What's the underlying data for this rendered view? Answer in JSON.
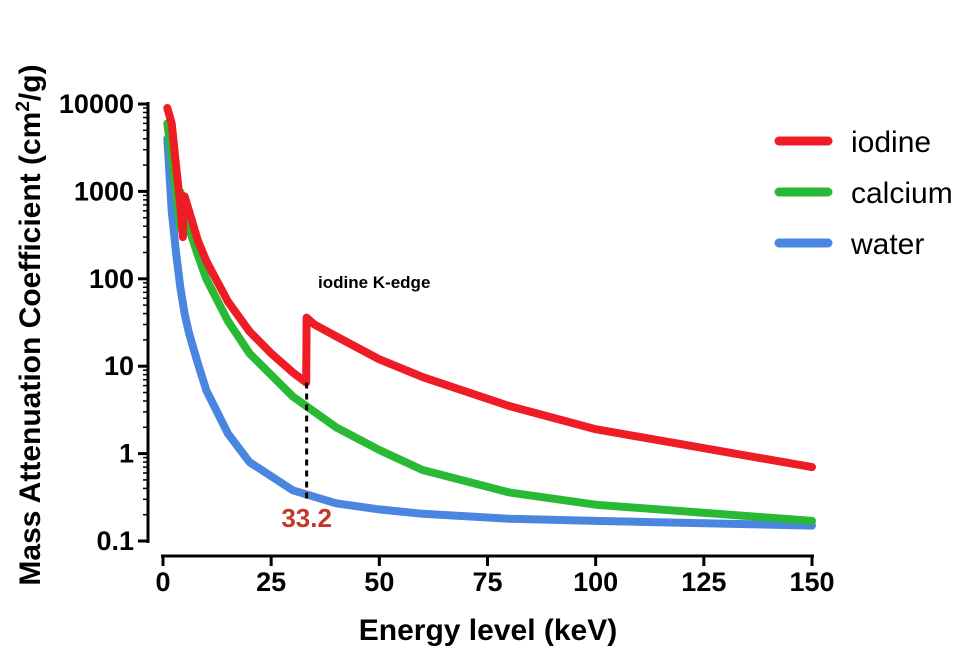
{
  "chart_data": {
    "type": "line",
    "xlabel": "Energy level (keV)",
    "ylabel_main": "Mass Attenuation  Coefficient (cm",
    "ylabel_sup": "2",
    "ylabel_tail": "/g)",
    "xlim": [
      0,
      150
    ],
    "ylim": [
      0.1,
      10000
    ],
    "yscale": "log",
    "x_ticks": [
      0,
      25,
      50,
      75,
      100,
      125,
      150
    ],
    "x_tick_labels": [
      "0",
      "25",
      "50",
      "75",
      "100",
      "125",
      "150"
    ],
    "y_ticks": [
      0.1,
      1,
      10,
      100,
      1000,
      10000
    ],
    "y_tick_labels": [
      "0.1",
      "1",
      "10",
      "100",
      "1000",
      "10000"
    ],
    "grid": false,
    "legend_position": "top-right",
    "series": [
      {
        "name": "iodine",
        "color": "#ee1c25",
        "points": [
          [
            1,
            9000
          ],
          [
            2,
            6000
          ],
          [
            3,
            2000
          ],
          [
            4,
            700
          ],
          [
            4.6,
            300
          ],
          [
            4.6,
            850
          ],
          [
            5,
            880
          ],
          [
            6,
            600
          ],
          [
            8,
            280
          ],
          [
            10,
            160
          ],
          [
            15,
            55
          ],
          [
            20,
            25
          ],
          [
            25,
            14
          ],
          [
            30,
            8.5
          ],
          [
            33.1,
            6.5
          ],
          [
            33.2,
            36
          ],
          [
            35,
            30
          ],
          [
            40,
            22
          ],
          [
            50,
            12
          ],
          [
            60,
            7.5
          ],
          [
            80,
            3.5
          ],
          [
            100,
            1.9
          ],
          [
            150,
            0.7
          ]
        ]
      },
      {
        "name": "calcium",
        "color": "#2ab934",
        "points": [
          [
            1,
            6000
          ],
          [
            2,
            2500
          ],
          [
            3,
            1000
          ],
          [
            4,
            380
          ],
          [
            4.04,
            980
          ],
          [
            5,
            600
          ],
          [
            6,
            380
          ],
          [
            8,
            190
          ],
          [
            10,
            100
          ],
          [
            15,
            33
          ],
          [
            20,
            14
          ],
          [
            30,
            4.5
          ],
          [
            40,
            2
          ],
          [
            50,
            1.1
          ],
          [
            60,
            0.65
          ],
          [
            80,
            0.36
          ],
          [
            100,
            0.26
          ],
          [
            150,
            0.17
          ]
        ]
      },
      {
        "name": "water",
        "color": "#4a86e0",
        "points": [
          [
            1,
            4000
          ],
          [
            2,
            600
          ],
          [
            3,
            200
          ],
          [
            4,
            80
          ],
          [
            5,
            40
          ],
          [
            6,
            24
          ],
          [
            8,
            11
          ],
          [
            10,
            5.3
          ],
          [
            15,
            1.7
          ],
          [
            20,
            0.8
          ],
          [
            30,
            0.38
          ],
          [
            40,
            0.27
          ],
          [
            50,
            0.23
          ],
          [
            60,
            0.205
          ],
          [
            80,
            0.18
          ],
          [
            100,
            0.17
          ],
          [
            150,
            0.15
          ]
        ]
      }
    ],
    "annotations": {
      "kedge_label": "iodine K-edge",
      "kedge_x": 33.2,
      "kedge_value_label": "33.2",
      "kedge_value_color": "#c0392b"
    }
  }
}
